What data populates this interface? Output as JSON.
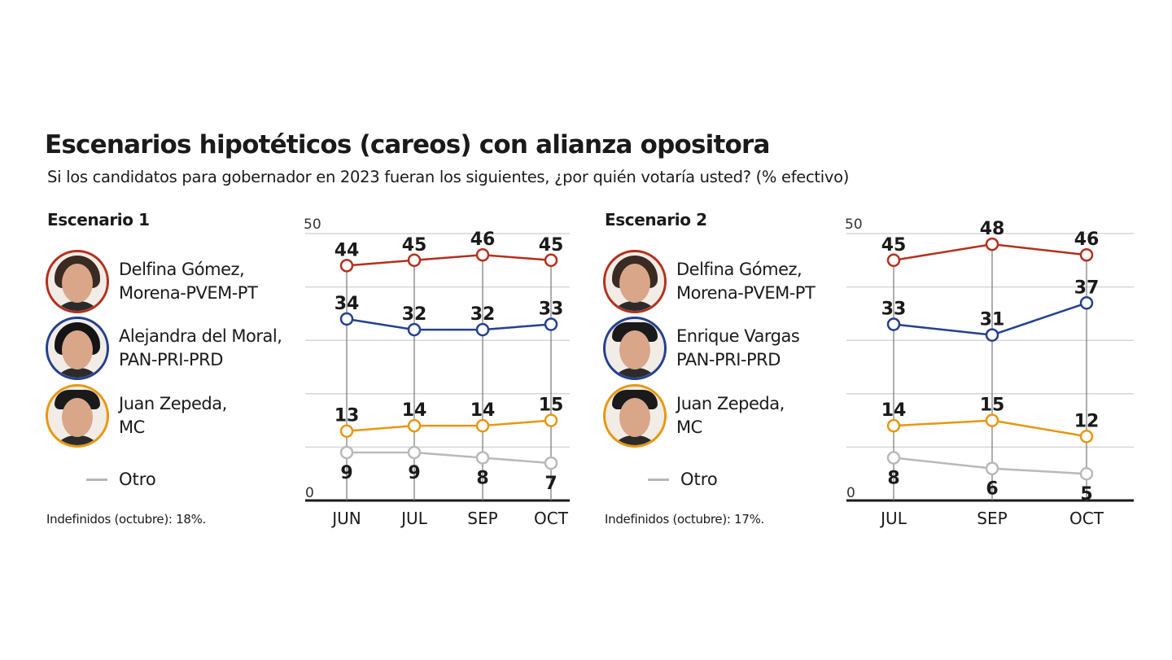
{
  "title": "Escenarios hipotéticos (careos) con alianza opositora",
  "subtitle": "Si los candidatos para gobernador en 2023 fueran los siguientes, ¿por quién votaría usted? (% efectivo)",
  "colors": {
    "morena": "#b3301e",
    "alianza": "#24408e",
    "mc": "#e8970f",
    "otro": "#b9b9b9"
  },
  "scenarios": [
    {
      "label": "Escenario 1",
      "candidates": [
        {
          "name": "Delfina Gómez,",
          "party": "Morena-PVEM-PT",
          "icon": "candidate-photo"
        },
        {
          "name": "Alejandra del Moral,",
          "party": "PAN-PRI-PRD",
          "icon": "candidate-photo"
        },
        {
          "name": "Juan Zepeda,",
          "party": "MC",
          "icon": "candidate-photo"
        }
      ],
      "otro": "Otro",
      "note": "Indefinidos (octubre): 18%."
    },
    {
      "label": "Escenario 2",
      "candidates": [
        {
          "name": "Delfina Gómez,",
          "party": "Morena-PVEM-PT",
          "icon": "candidate-photo"
        },
        {
          "name": "Enrique Vargas",
          "party": "PAN-PRI-PRD",
          "icon": "candidate-photo"
        },
        {
          "name": "Juan Zepeda,",
          "party": "MC",
          "icon": "candidate-photo"
        }
      ],
      "otro": "Otro",
      "note": "Indefinidos (octubre): 17%."
    }
  ],
  "chart_data": [
    {
      "type": "line",
      "categories": [
        "JUN",
        "JUL",
        "SEP",
        "OCT"
      ],
      "ylim": [
        0,
        50
      ],
      "yticks": [
        "0",
        "50"
      ],
      "grid": true,
      "series": [
        {
          "name": "Delfina Gómez, Morena-PVEM-PT",
          "color": "#b3301e",
          "values": [
            44,
            45,
            46,
            45
          ]
        },
        {
          "name": "Alejandra del Moral, PAN-PRI-PRD",
          "color": "#24408e",
          "values": [
            34,
            32,
            32,
            33
          ]
        },
        {
          "name": "Juan Zepeda, MC",
          "color": "#e8970f",
          "values": [
            13,
            14,
            14,
            15
          ]
        },
        {
          "name": "Otro",
          "color": "#b9b9b9",
          "values": [
            9,
            9,
            8,
            7
          ]
        }
      ]
    },
    {
      "type": "line",
      "categories": [
        "JUL",
        "SEP",
        "OCT"
      ],
      "ylim": [
        0,
        50
      ],
      "yticks": [
        "0",
        "50"
      ],
      "grid": true,
      "series": [
        {
          "name": "Delfina Gómez, Morena-PVEM-PT",
          "color": "#b3301e",
          "values": [
            45,
            48,
            46
          ]
        },
        {
          "name": "Enrique Vargas PAN-PRI-PRD",
          "color": "#24408e",
          "values": [
            33,
            31,
            37
          ]
        },
        {
          "name": "Juan Zepeda, MC",
          "color": "#e8970f",
          "values": [
            14,
            15,
            12
          ]
        },
        {
          "name": "Otro",
          "color": "#b9b9b9",
          "values": [
            8,
            6,
            5
          ]
        }
      ]
    }
  ]
}
